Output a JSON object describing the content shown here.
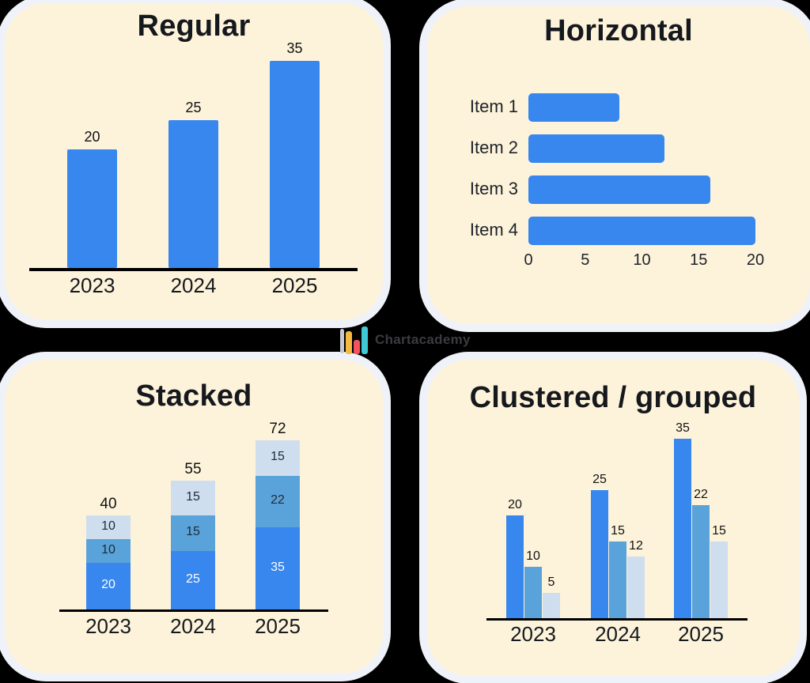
{
  "page": {
    "background": "#000000",
    "panel_color": "#fdf3da",
    "panel_ring_color": "#eff2f8",
    "axis_color": "#000000",
    "accent_blue": "#3787ef",
    "medium_blue": "#5aa3da",
    "light_blue": "#cfdeee"
  },
  "watermark": {
    "text": "Chartacademy",
    "icon": "bar-chart-logo-icon",
    "icon_colors": [
      "#c5c9d0",
      "#f6b93f",
      "#f4555c",
      "#3fc9d6"
    ]
  },
  "chart_data": [
    {
      "id": "regular",
      "type": "bar",
      "title": "Regular",
      "categories": [
        "2023",
        "2024",
        "2025"
      ],
      "values": [
        20,
        25,
        35
      ],
      "bar_color": "#3787ef",
      "value_labels": true,
      "ylim": [
        0,
        37
      ],
      "grid": false,
      "legend": "none"
    },
    {
      "id": "horizontal",
      "type": "bar-horizontal",
      "title": "Horizontal",
      "categories": [
        "Item 1",
        "Item 2",
        "Item 3",
        "Item 4"
      ],
      "values": [
        8,
        12,
        16,
        20
      ],
      "x_ticks": [
        0,
        5,
        10,
        15,
        20
      ],
      "xlim": [
        0,
        20
      ],
      "bar_color": "#3787ef",
      "grid": false,
      "legend": "none"
    },
    {
      "id": "stacked",
      "type": "stacked-bar",
      "title": "Stacked",
      "categories": [
        "2023",
        "2024",
        "2025"
      ],
      "series": [
        {
          "name": "bottom-segment",
          "color": "#3787ef",
          "values": [
            20,
            25,
            35
          ]
        },
        {
          "name": "middle-segment",
          "color": "#5aa3da",
          "values": [
            10,
            15,
            22
          ]
        },
        {
          "name": "top-segment",
          "color": "#cfdeee",
          "values": [
            10,
            15,
            15
          ]
        }
      ],
      "totals": [
        40,
        55,
        72
      ],
      "ylim": [
        0,
        75
      ],
      "grid": false,
      "legend": "none"
    },
    {
      "id": "clustered",
      "type": "grouped-bar",
      "title": "Clustered / grouped",
      "categories": [
        "2023",
        "2024",
        "2025"
      ],
      "series": [
        {
          "name": "series-1",
          "color": "#3787ef",
          "values": [
            20,
            25,
            35
          ]
        },
        {
          "name": "series-2",
          "color": "#5aa3da",
          "values": [
            10,
            15,
            22
          ]
        },
        {
          "name": "series-3",
          "color": "#cfdeee",
          "values": [
            5,
            12,
            15
          ]
        }
      ],
      "ylim": [
        0,
        37
      ],
      "grid": false,
      "legend": "none"
    }
  ]
}
